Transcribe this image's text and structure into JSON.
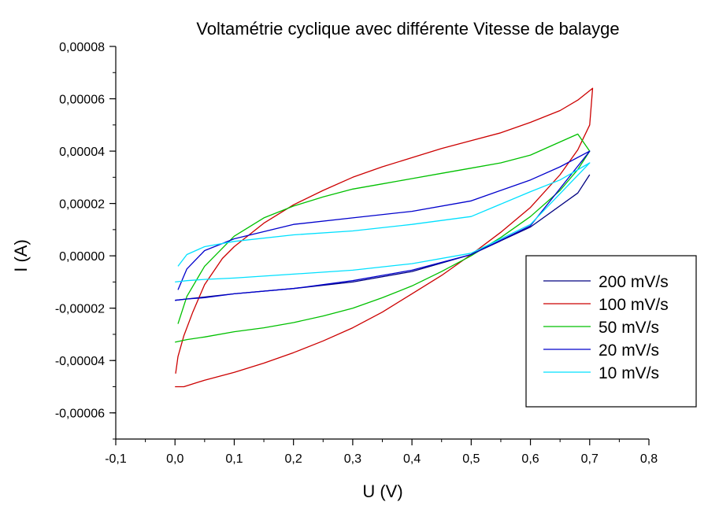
{
  "chart_data": {
    "type": "line",
    "title": "Voltamétrie cyclique avec différente Vitesse de balayge",
    "xlabel": "U (V)",
    "ylabel": "I (A)",
    "xlim": [
      -0.1,
      0.8
    ],
    "ylim": [
      -7e-05,
      8e-05
    ],
    "xticks": [
      -0.1,
      0.0,
      0.1,
      0.2,
      0.3,
      0.4,
      0.5,
      0.6,
      0.7,
      0.8
    ],
    "xtick_labels": [
      "-0,1",
      "0,0",
      "0,1",
      "0,2",
      "0,3",
      "0,4",
      "0,5",
      "0,6",
      "0,7",
      "0,8"
    ],
    "yticks": [
      -6e-05,
      -4e-05,
      -2e-05,
      0.0,
      2e-05,
      4e-05,
      6e-05,
      8e-05
    ],
    "ytick_labels": [
      "-0,00006",
      "-0,00004",
      "-0,00002",
      "0,00000",
      "0,00002",
      "0,00004",
      "0,00006",
      "0,00008"
    ],
    "legend_position": "right",
    "series": [
      {
        "name": "200 mV/s",
        "color": "#000080",
        "x": [
          0.0,
          0.02,
          0.06,
          0.1,
          0.2,
          0.3,
          0.4,
          0.5,
          0.6,
          0.68,
          0.7
        ],
        "y": [
          -1.7e-05,
          -1.65e-05,
          -1.55e-05,
          -1.45e-05,
          -1.25e-05,
          -1e-05,
          -6e-06,
          5e-07,
          1.1e-05,
          2.4e-05,
          3.1e-05
        ]
      },
      {
        "name": "100 mV/s",
        "color": "#cc0000",
        "x": [
          0.0,
          0.015,
          0.05,
          0.1,
          0.15,
          0.2,
          0.25,
          0.3,
          0.35,
          0.4,
          0.45,
          0.5,
          0.55,
          0.6,
          0.65,
          0.68,
          0.7,
          0.705,
          0.68,
          0.65,
          0.6,
          0.55,
          0.5,
          0.45,
          0.4,
          0.35,
          0.3,
          0.25,
          0.2,
          0.15,
          0.1,
          0.08,
          0.05,
          0.03,
          0.015,
          0.005,
          0.001
        ],
        "y": [
          -5e-05,
          -5e-05,
          -4.75e-05,
          -4.45e-05,
          -4.1e-05,
          -3.7e-05,
          -3.25e-05,
          -2.75e-05,
          -2.15e-05,
          -1.45e-05,
          -7.5e-06,
          5e-07,
          9e-06,
          1.85e-05,
          3.1e-05,
          4.05e-05,
          5e-05,
          6.4e-05,
          5.95e-05,
          5.55e-05,
          5.1e-05,
          4.7e-05,
          4.4e-05,
          4.1e-05,
          3.75e-05,
          3.4e-05,
          3e-05,
          2.5e-05,
          1.95e-05,
          1.25e-05,
          3.5e-06,
          -1e-06,
          -1.1e-05,
          -2.15e-05,
          -3.05e-05,
          -3.85e-05,
          -4.5e-05
        ]
      },
      {
        "name": "50 mV/s",
        "color": "#00c000",
        "x": [
          0.0,
          0.02,
          0.05,
          0.1,
          0.15,
          0.2,
          0.25,
          0.3,
          0.35,
          0.4,
          0.45,
          0.5,
          0.55,
          0.6,
          0.65,
          0.68,
          0.7,
          0.68,
          0.65,
          0.6,
          0.55,
          0.5,
          0.45,
          0.4,
          0.35,
          0.3,
          0.25,
          0.2,
          0.15,
          0.1,
          0.05,
          0.02,
          0.005
        ],
        "y": [
          -3.3e-05,
          -3.2e-05,
          -3.1e-05,
          -2.9e-05,
          -2.75e-05,
          -2.55e-05,
          -2.3e-05,
          -2e-05,
          -1.6e-05,
          -1.15e-05,
          -6e-06,
          0.0,
          7e-06,
          1.5e-05,
          2.5e-05,
          3.3e-05,
          4e-05,
          4.65e-05,
          4.35e-05,
          3.85e-05,
          3.55e-05,
          3.35e-05,
          3.15e-05,
          2.95e-05,
          2.75e-05,
          2.55e-05,
          2.25e-05,
          1.9e-05,
          1.45e-05,
          7.5e-06,
          -4e-06,
          -1.55e-05,
          -2.6e-05
        ]
      },
      {
        "name": "20 mV/s",
        "color": "#0000cc",
        "x": [
          0.0,
          0.02,
          0.05,
          0.1,
          0.2,
          0.3,
          0.4,
          0.5,
          0.6,
          0.7,
          0.65,
          0.6,
          0.5,
          0.4,
          0.3,
          0.2,
          0.1,
          0.05,
          0.02,
          0.005
        ],
        "y": [
          -1.7e-05,
          -1.65e-05,
          -1.6e-05,
          -1.45e-05,
          -1.25e-05,
          -9.5e-06,
          -5.5e-06,
          5e-07,
          1.15e-05,
          4e-05,
          3.4e-05,
          2.9e-05,
          2.1e-05,
          1.7e-05,
          1.45e-05,
          1.2e-05,
          6.5e-06,
          2e-06,
          -5e-06,
          -1.3e-05
        ]
      },
      {
        "name": "10 mV/s",
        "color": "#00e0ff",
        "x": [
          0.0,
          0.02,
          0.05,
          0.1,
          0.2,
          0.3,
          0.4,
          0.5,
          0.6,
          0.7,
          0.65,
          0.6,
          0.5,
          0.4,
          0.3,
          0.2,
          0.1,
          0.05,
          0.02,
          0.005
        ],
        "y": [
          -1e-05,
          -9.5e-06,
          -9e-06,
          -8.5e-06,
          -7e-06,
          -5.5e-06,
          -3e-06,
          1e-06,
          1.2e-05,
          3.55e-05,
          2.9e-05,
          2.45e-05,
          1.5e-05,
          1.2e-05,
          9.5e-06,
          8e-06,
          5.5e-06,
          3.5e-06,
          5e-07,
          -4e-06
        ]
      }
    ]
  }
}
